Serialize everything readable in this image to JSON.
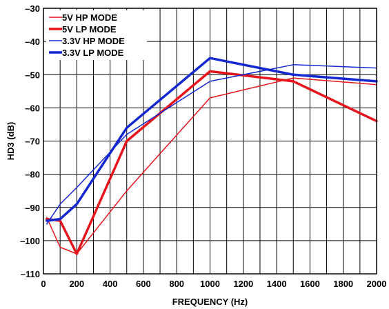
{
  "chart_data": {
    "type": "line",
    "xlabel": "FREQUENCY (Hz)",
    "ylabel": "HD3 (dB)",
    "xlim": [
      0,
      2000
    ],
    "ylim": [
      -110,
      -30
    ],
    "xticks": [
      0,
      200,
      400,
      600,
      800,
      1000,
      1200,
      1400,
      1600,
      1800,
      2000
    ],
    "yticks": [
      -30,
      -40,
      -50,
      -60,
      -70,
      -80,
      -90,
      -100,
      -110
    ],
    "xtick_labels": [
      "0",
      "200",
      "400",
      "600",
      "800",
      "1000",
      "1200",
      "1400",
      "1600",
      "1800",
      "2000"
    ],
    "ytick_labels": [
      "–30",
      "–40",
      "–50",
      "–60",
      "–70",
      "–80",
      "–90",
      "–100",
      "–110"
    ],
    "grid": true,
    "legend_position": "top-left",
    "series": [
      {
        "name": "5V HP MODE",
        "color": "#e8141b",
        "weight": "thin",
        "x": [
          20,
          100,
          200,
          500,
          1000,
          1500,
          2000
        ],
        "y": [
          -93,
          -102,
          -104,
          -85,
          -57,
          -51,
          -53
        ]
      },
      {
        "name": "5V LP MODE",
        "color": "#e8141b",
        "weight": "thick",
        "x": [
          20,
          100,
          200,
          500,
          1000,
          1500,
          2000
        ],
        "y": [
          -93.5,
          -94,
          -104,
          -70,
          -49,
          -52,
          -64
        ]
      },
      {
        "name": "3.3V HP MODE",
        "color": "#1428d2",
        "weight": "thin",
        "x": [
          20,
          100,
          200,
          500,
          1000,
          1500,
          2000
        ],
        "y": [
          -95,
          -89,
          -84,
          -68,
          -52,
          -47,
          -48
        ]
      },
      {
        "name": "3.3V LP MODE",
        "color": "#1428d2",
        "weight": "thick",
        "x": [
          20,
          100,
          200,
          500,
          1000,
          1500,
          2000
        ],
        "y": [
          -94,
          -93.5,
          -89,
          -66,
          -45,
          -50,
          -52
        ]
      }
    ]
  }
}
